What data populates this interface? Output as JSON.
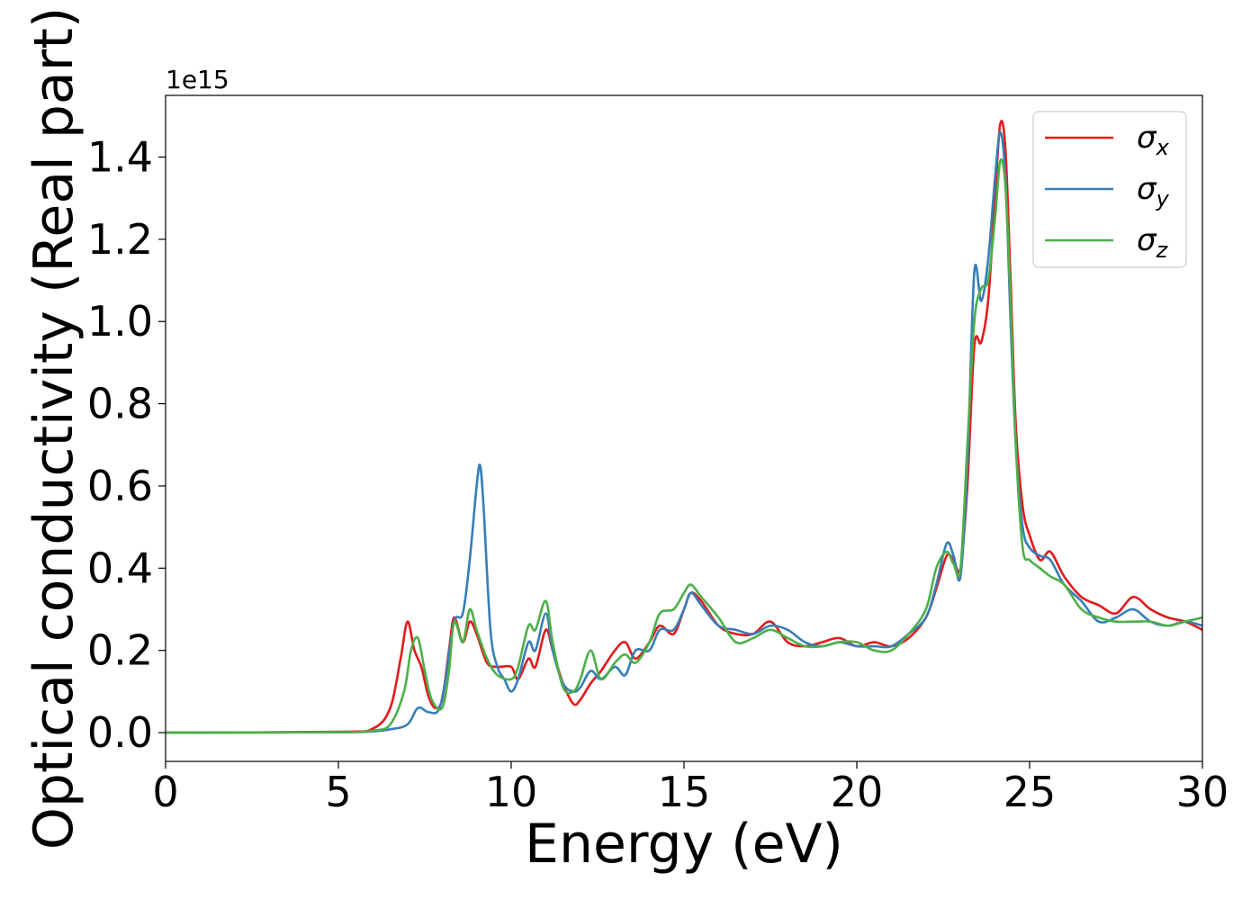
{
  "chart_data": {
    "type": "line",
    "title": "",
    "xlabel": "Energy (eV)",
    "ylabel": "Optical conductivity (Real part)",
    "y_offset_text": "1e15",
    "y_multiplier": 1000000000000000.0,
    "xlim": [
      0,
      30
    ],
    "ylim": [
      -0.07,
      1.55
    ],
    "xticks": [
      0,
      5,
      10,
      15,
      20,
      25,
      30
    ],
    "xtick_labels": [
      "0",
      "5",
      "10",
      "15",
      "20",
      "25",
      "30"
    ],
    "yticks": [
      0.0,
      0.2,
      0.4,
      0.6,
      0.8,
      1.0,
      1.2,
      1.4
    ],
    "ytick_labels": [
      "0.0",
      "0.2",
      "0.4",
      "0.6",
      "0.8",
      "1.0",
      "1.2",
      "1.4"
    ],
    "grid": false,
    "legend_position": "top-right",
    "series": [
      {
        "name": "σ_x",
        "legend_sym": "σ",
        "legend_sub": "x",
        "color": "#e41a1c",
        "x": [
          0,
          5,
          6,
          6.5,
          6.8,
          7.0,
          7.2,
          7.4,
          7.6,
          7.8,
          8.0,
          8.2,
          8.35,
          8.6,
          8.8,
          9.0,
          9.3,
          9.6,
          10.0,
          10.2,
          10.5,
          10.7,
          11.0,
          11.2,
          11.5,
          11.8,
          12.0,
          12.3,
          12.6,
          13.0,
          13.3,
          13.6,
          14.0,
          14.3,
          14.7,
          15.0,
          15.2,
          15.5,
          16.0,
          16.5,
          17.0,
          17.5,
          18.0,
          18.5,
          19.0,
          19.5,
          20.0,
          20.5,
          21.0,
          21.5,
          22.0,
          22.3,
          22.6,
          22.8,
          23.0,
          23.2,
          23.4,
          23.6,
          23.8,
          24.0,
          24.15,
          24.3,
          24.45,
          24.6,
          24.8,
          25.0,
          25.3,
          25.6,
          26.0,
          26.5,
          27.0,
          27.5,
          28.0,
          28.5,
          29.0,
          29.5,
          30.0
        ],
        "y": [
          0.0,
          0.002,
          0.01,
          0.06,
          0.18,
          0.27,
          0.2,
          0.16,
          0.09,
          0.06,
          0.08,
          0.2,
          0.28,
          0.22,
          0.27,
          0.24,
          0.17,
          0.16,
          0.16,
          0.13,
          0.18,
          0.16,
          0.25,
          0.2,
          0.12,
          0.07,
          0.08,
          0.12,
          0.15,
          0.2,
          0.22,
          0.18,
          0.22,
          0.26,
          0.24,
          0.3,
          0.34,
          0.32,
          0.26,
          0.24,
          0.24,
          0.27,
          0.22,
          0.21,
          0.22,
          0.23,
          0.21,
          0.22,
          0.21,
          0.23,
          0.28,
          0.35,
          0.43,
          0.42,
          0.4,
          0.6,
          0.94,
          0.95,
          1.05,
          1.3,
          1.48,
          1.42,
          1.1,
          0.75,
          0.55,
          0.48,
          0.42,
          0.44,
          0.38,
          0.33,
          0.31,
          0.29,
          0.33,
          0.3,
          0.28,
          0.27,
          0.25
        ]
      },
      {
        "name": "σ_y",
        "legend_sym": "σ",
        "legend_sub": "y",
        "color": "#377eb8",
        "x": [
          0,
          5,
          6,
          6.5,
          7.0,
          7.3,
          7.6,
          7.9,
          8.1,
          8.35,
          8.6,
          8.8,
          9.0,
          9.1,
          9.2,
          9.4,
          9.6,
          9.8,
          10.0,
          10.2,
          10.5,
          10.7,
          11.0,
          11.2,
          11.5,
          11.8,
          12.0,
          12.3,
          12.6,
          13.0,
          13.3,
          13.6,
          14.0,
          14.3,
          14.7,
          15.0,
          15.2,
          15.5,
          16.0,
          16.5,
          17.0,
          17.5,
          18.0,
          18.5,
          19.0,
          19.5,
          20.0,
          20.5,
          21.0,
          21.5,
          22.0,
          22.3,
          22.6,
          22.8,
          23.0,
          23.2,
          23.4,
          23.6,
          23.8,
          24.0,
          24.15,
          24.3,
          24.45,
          24.6,
          24.8,
          25.0,
          25.3,
          25.6,
          26.0,
          26.5,
          27.0,
          27.5,
          28.0,
          28.5,
          29.0,
          29.5,
          30.0
        ],
        "y": [
          0.0,
          0.001,
          0.003,
          0.008,
          0.02,
          0.06,
          0.05,
          0.055,
          0.13,
          0.27,
          0.29,
          0.42,
          0.6,
          0.65,
          0.55,
          0.25,
          0.16,
          0.13,
          0.1,
          0.13,
          0.22,
          0.2,
          0.29,
          0.2,
          0.12,
          0.1,
          0.11,
          0.15,
          0.13,
          0.16,
          0.14,
          0.2,
          0.2,
          0.25,
          0.25,
          0.3,
          0.34,
          0.31,
          0.26,
          0.25,
          0.24,
          0.26,
          0.25,
          0.22,
          0.21,
          0.22,
          0.21,
          0.21,
          0.21,
          0.24,
          0.28,
          0.36,
          0.46,
          0.43,
          0.38,
          0.65,
          1.12,
          1.05,
          1.15,
          1.35,
          1.46,
          1.35,
          1.0,
          0.7,
          0.5,
          0.45,
          0.43,
          0.42,
          0.36,
          0.32,
          0.27,
          0.28,
          0.3,
          0.27,
          0.26,
          0.27,
          0.26
        ]
      },
      {
        "name": "σ_z",
        "legend_sym": "σ",
        "legend_sub": "z",
        "color": "#4daf4a",
        "x": [
          0,
          5,
          6,
          6.5,
          6.9,
          7.1,
          7.3,
          7.5,
          7.7,
          8.0,
          8.2,
          8.35,
          8.6,
          8.8,
          9.0,
          9.3,
          9.6,
          10.0,
          10.2,
          10.5,
          10.7,
          11.0,
          11.2,
          11.5,
          11.8,
          12.0,
          12.3,
          12.6,
          13.0,
          13.3,
          13.6,
          14.0,
          14.3,
          14.7,
          15.0,
          15.2,
          15.5,
          16.0,
          16.5,
          17.0,
          17.5,
          18.0,
          18.5,
          19.0,
          19.5,
          20.0,
          20.5,
          21.0,
          21.5,
          22.0,
          22.3,
          22.6,
          22.8,
          23.0,
          23.2,
          23.4,
          23.6,
          23.8,
          24.0,
          24.15,
          24.3,
          24.45,
          24.6,
          24.8,
          25.0,
          25.3,
          25.6,
          26.0,
          26.5,
          27.0,
          27.5,
          28.0,
          28.5,
          29.0,
          29.5,
          30.0
        ],
        "y": [
          0.0,
          0.001,
          0.005,
          0.02,
          0.1,
          0.2,
          0.23,
          0.15,
          0.08,
          0.06,
          0.15,
          0.27,
          0.22,
          0.3,
          0.25,
          0.18,
          0.14,
          0.13,
          0.16,
          0.26,
          0.25,
          0.32,
          0.22,
          0.11,
          0.1,
          0.13,
          0.2,
          0.13,
          0.17,
          0.19,
          0.17,
          0.22,
          0.29,
          0.3,
          0.34,
          0.36,
          0.33,
          0.28,
          0.22,
          0.23,
          0.25,
          0.23,
          0.21,
          0.21,
          0.22,
          0.22,
          0.2,
          0.2,
          0.24,
          0.3,
          0.4,
          0.44,
          0.41,
          0.4,
          0.7,
          1.0,
          1.08,
          1.1,
          1.25,
          1.39,
          1.33,
          1.05,
          0.7,
          0.45,
          0.42,
          0.4,
          0.38,
          0.36,
          0.3,
          0.28,
          0.27,
          0.27,
          0.27,
          0.26,
          0.27,
          0.28
        ]
      }
    ]
  }
}
